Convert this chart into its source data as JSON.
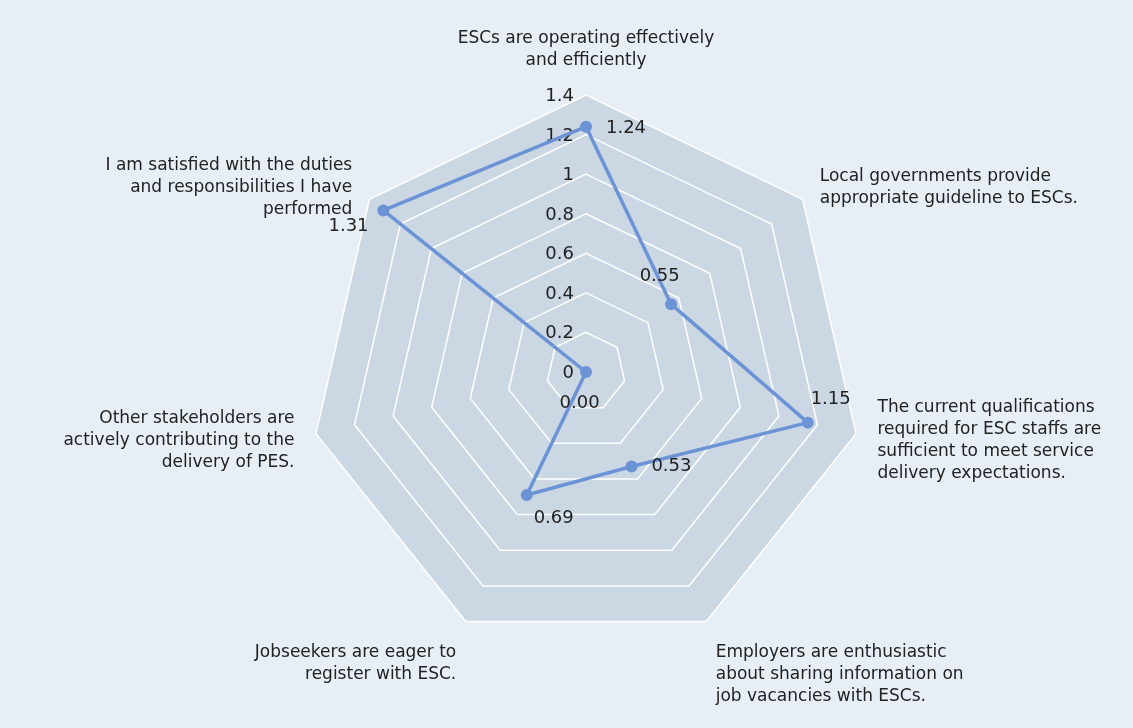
{
  "chart_data": {
    "type": "radar",
    "categories": [
      "ESCs are operating effectively and efficiently",
      "Local governments provide appropriate guideline to ESCs.",
      "The current qualifications required for ESC staffs are sufficient to meet service delivery expectations.",
      "Employers are enthusiastic about sharing information on job vacancies with ESCs.",
      "Jobseekers are eager to register with ESC.",
      "Other stakeholders are actively contributing to the delivery of PES.",
      "I am satisfied with the duties and responsibilities I have performed"
    ],
    "series": [
      {
        "color": "#6b93d6",
        "values": [
          1.24,
          0.55,
          1.15,
          0.53,
          0.69,
          0.0,
          1.31
        ],
        "value_labels": [
          "1.24",
          "0.55",
          "1.15",
          "0.53",
          "0.69",
          "0.00",
          "1.31"
        ]
      }
    ],
    "ylim": [
      0,
      1.4
    ],
    "yticks": [
      0,
      0.2,
      0.4,
      0.6,
      0.8,
      1,
      1.2,
      1.4
    ],
    "grid": true,
    "marker": "circle"
  }
}
